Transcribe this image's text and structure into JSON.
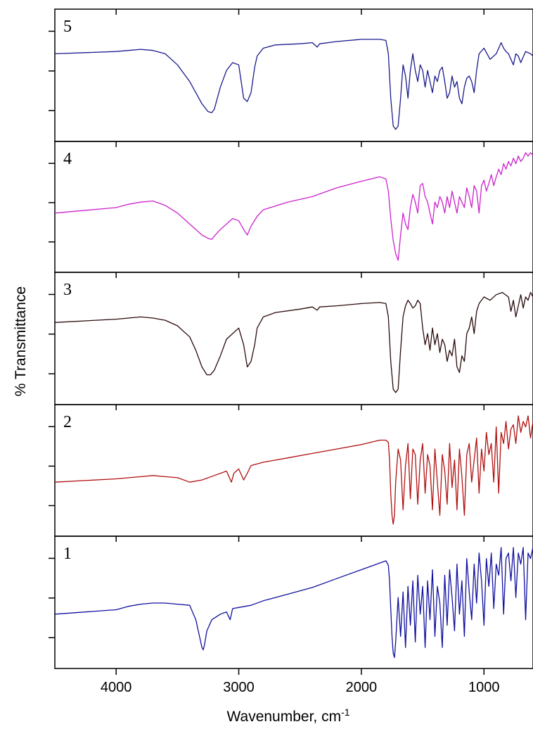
{
  "chart_data": {
    "type": "line",
    "xlabel": "Wavenumber, cm",
    "xlabel_superscript": "-1",
    "ylabel": "% Transmittance",
    "xlim": [
      4500,
      600
    ],
    "xticks": [
      4000,
      3000,
      2000,
      1000
    ],
    "x_reversed": true,
    "stacked_panels": true,
    "panels": [
      {
        "label": "5",
        "color": "#1a1a8c"
      },
      {
        "label": "4",
        "color": "#cc22cc"
      },
      {
        "label": "3",
        "color": "#2a0a0a"
      },
      {
        "label": "2",
        "color": "#b01010"
      },
      {
        "label": "1",
        "color": "#1010a0"
      }
    ],
    "series": [
      {
        "name": "5",
        "x": [
          4500,
          4000,
          3900,
          3800,
          3700,
          3600,
          3500,
          3400,
          3350,
          3300,
          3250,
          3220,
          3200,
          3150,
          3100,
          3050,
          3000,
          2980,
          2960,
          2930,
          2900,
          2870,
          2850,
          2800,
          2700,
          2500,
          2400,
          2360,
          2340,
          2200,
          2000,
          1850,
          1800,
          1780,
          1760,
          1740,
          1720,
          1700,
          1680,
          1660,
          1640,
          1620,
          1600,
          1580,
          1560,
          1540,
          1520,
          1500,
          1480,
          1460,
          1440,
          1420,
          1400,
          1380,
          1360,
          1340,
          1320,
          1300,
          1280,
          1260,
          1240,
          1220,
          1200,
          1180,
          1160,
          1140,
          1120,
          1100,
          1080,
          1060,
          1040,
          1000,
          950,
          900,
          860,
          840,
          820,
          800,
          780,
          760,
          740,
          720,
          700,
          660,
          620,
          600
        ],
        "y": [
          0.7,
          0.72,
          0.73,
          0.74,
          0.73,
          0.7,
          0.6,
          0.45,
          0.35,
          0.25,
          0.18,
          0.17,
          0.2,
          0.4,
          0.55,
          0.62,
          0.6,
          0.45,
          0.3,
          0.27,
          0.35,
          0.58,
          0.68,
          0.75,
          0.78,
          0.79,
          0.8,
          0.76,
          0.79,
          0.81,
          0.83,
          0.83,
          0.82,
          0.7,
          0.3,
          0.05,
          0.02,
          0.05,
          0.3,
          0.6,
          0.5,
          0.3,
          0.55,
          0.7,
          0.55,
          0.45,
          0.6,
          0.55,
          0.4,
          0.55,
          0.45,
          0.35,
          0.5,
          0.45,
          0.55,
          0.58,
          0.45,
          0.3,
          0.35,
          0.5,
          0.4,
          0.45,
          0.3,
          0.25,
          0.4,
          0.48,
          0.5,
          0.45,
          0.35,
          0.55,
          0.7,
          0.75,
          0.65,
          0.7,
          0.8,
          0.75,
          0.72,
          0.7,
          0.65,
          0.6,
          0.7,
          0.68,
          0.62,
          0.72,
          0.7,
          0.68
        ]
      },
      {
        "name": "4",
        "x": [
          4500,
          4000,
          3900,
          3800,
          3700,
          3600,
          3500,
          3400,
          3300,
          3250,
          3220,
          3200,
          3150,
          3100,
          3050,
          3000,
          2960,
          2930,
          2900,
          2850,
          2800,
          2600,
          2400,
          2200,
          2000,
          1850,
          1800,
          1780,
          1760,
          1740,
          1720,
          1700,
          1680,
          1660,
          1640,
          1620,
          1600,
          1580,
          1560,
          1540,
          1520,
          1500,
          1480,
          1460,
          1440,
          1420,
          1400,
          1380,
          1360,
          1340,
          1320,
          1300,
          1280,
          1260,
          1240,
          1220,
          1200,
          1180,
          1160,
          1140,
          1120,
          1100,
          1080,
          1060,
          1040,
          1020,
          1000,
          980,
          960,
          940,
          920,
          900,
          880,
          860,
          840,
          820,
          800,
          780,
          760,
          740,
          720,
          700,
          680,
          660,
          640,
          620,
          600
        ],
        "y": [
          0.45,
          0.5,
          0.53,
          0.55,
          0.56,
          0.52,
          0.45,
          0.35,
          0.25,
          0.22,
          0.21,
          0.24,
          0.3,
          0.35,
          0.4,
          0.38,
          0.3,
          0.25,
          0.33,
          0.42,
          0.48,
          0.55,
          0.6,
          0.68,
          0.74,
          0.78,
          0.76,
          0.65,
          0.4,
          0.2,
          0.08,
          0.02,
          0.25,
          0.45,
          0.35,
          0.3,
          0.5,
          0.62,
          0.55,
          0.45,
          0.7,
          0.72,
          0.6,
          0.55,
          0.45,
          0.35,
          0.55,
          0.5,
          0.6,
          0.55,
          0.45,
          0.6,
          0.5,
          0.65,
          0.55,
          0.45,
          0.6,
          0.55,
          0.5,
          0.68,
          0.6,
          0.5,
          0.7,
          0.65,
          0.45,
          0.7,
          0.75,
          0.65,
          0.72,
          0.8,
          0.7,
          0.78,
          0.85,
          0.8,
          0.9,
          0.85,
          0.92,
          0.88,
          0.95,
          0.9,
          0.97,
          0.92,
          0.95,
          1.0,
          0.97,
          1.0,
          0.98
        ]
      },
      {
        "name": "3",
        "x": [
          4500,
          4000,
          3900,
          3800,
          3700,
          3600,
          3500,
          3400,
          3350,
          3300,
          3260,
          3230,
          3200,
          3150,
          3100,
          3050,
          3000,
          2960,
          2930,
          2900,
          2870,
          2850,
          2800,
          2700,
          2500,
          2400,
          2360,
          2340,
          2200,
          2000,
          1850,
          1800,
          1780,
          1760,
          1740,
          1720,
          1700,
          1680,
          1660,
          1640,
          1620,
          1600,
          1580,
          1560,
          1540,
          1520,
          1500,
          1480,
          1460,
          1440,
          1420,
          1400,
          1380,
          1360,
          1340,
          1320,
          1300,
          1280,
          1260,
          1240,
          1220,
          1200,
          1180,
          1160,
          1140,
          1120,
          1100,
          1080,
          1060,
          1040,
          1000,
          950,
          900,
          850,
          800,
          780,
          760,
          740,
          720,
          700,
          680,
          660,
          640,
          620,
          600
        ],
        "y": [
          0.65,
          0.68,
          0.69,
          0.7,
          0.69,
          0.67,
          0.62,
          0.52,
          0.4,
          0.25,
          0.18,
          0.18,
          0.22,
          0.35,
          0.5,
          0.55,
          0.6,
          0.45,
          0.25,
          0.3,
          0.45,
          0.6,
          0.7,
          0.74,
          0.77,
          0.79,
          0.76,
          0.79,
          0.8,
          0.82,
          0.83,
          0.82,
          0.7,
          0.3,
          0.05,
          0.02,
          0.05,
          0.4,
          0.7,
          0.8,
          0.85,
          0.82,
          0.78,
          0.8,
          0.85,
          0.82,
          0.6,
          0.45,
          0.55,
          0.4,
          0.6,
          0.45,
          0.55,
          0.38,
          0.5,
          0.45,
          0.3,
          0.4,
          0.35,
          0.5,
          0.25,
          0.2,
          0.35,
          0.3,
          0.55,
          0.6,
          0.7,
          0.55,
          0.75,
          0.82,
          0.88,
          0.85,
          0.9,
          0.92,
          0.88,
          0.75,
          0.85,
          0.7,
          0.8,
          0.9,
          0.78,
          0.88,
          0.85,
          0.92,
          0.88
        ]
      },
      {
        "name": "2",
        "x": [
          4500,
          4000,
          3800,
          3700,
          3600,
          3500,
          3400,
          3300,
          3200,
          3100,
          3060,
          3040,
          3000,
          2960,
          2930,
          2900,
          2800,
          2600,
          2400,
          2200,
          2000,
          1850,
          1800,
          1780,
          1770,
          1760,
          1750,
          1740,
          1730,
          1720,
          1700,
          1680,
          1660,
          1640,
          1620,
          1600,
          1580,
          1560,
          1540,
          1520,
          1500,
          1480,
          1460,
          1440,
          1420,
          1400,
          1380,
          1360,
          1340,
          1320,
          1300,
          1280,
          1260,
          1240,
          1220,
          1200,
          1180,
          1160,
          1140,
          1120,
          1100,
          1080,
          1060,
          1040,
          1020,
          1000,
          980,
          960,
          940,
          920,
          900,
          880,
          860,
          840,
          820,
          800,
          780,
          760,
          740,
          720,
          700,
          680,
          660,
          640,
          620,
          600
        ],
        "y": [
          0.4,
          0.43,
          0.45,
          0.46,
          0.45,
          0.44,
          0.4,
          0.42,
          0.46,
          0.5,
          0.4,
          0.48,
          0.52,
          0.42,
          0.48,
          0.55,
          0.58,
          0.62,
          0.66,
          0.7,
          0.74,
          0.78,
          0.78,
          0.76,
          0.6,
          0.3,
          0.1,
          0.02,
          0.1,
          0.4,
          0.7,
          0.6,
          0.15,
          0.55,
          0.75,
          0.25,
          0.7,
          0.65,
          0.2,
          0.6,
          0.75,
          0.3,
          0.65,
          0.55,
          0.15,
          0.7,
          0.4,
          0.1,
          0.65,
          0.5,
          0.2,
          0.75,
          0.35,
          0.6,
          0.15,
          0.7,
          0.45,
          0.1,
          0.65,
          0.75,
          0.4,
          0.6,
          0.8,
          0.3,
          0.7,
          0.5,
          0.85,
          0.65,
          0.75,
          0.4,
          0.9,
          0.3,
          0.85,
          0.75,
          0.95,
          0.7,
          0.88,
          0.92,
          0.75,
          1.0,
          0.85,
          0.95,
          0.9,
          1.0,
          0.8,
          0.95
        ]
      },
      {
        "name": "1",
        "x": [
          4500,
          4000,
          3900,
          3800,
          3700,
          3600,
          3500,
          3400,
          3350,
          3320,
          3300,
          3290,
          3280,
          3260,
          3220,
          3150,
          3100,
          3070,
          3050,
          3000,
          2900,
          2800,
          2600,
          2400,
          2200,
          2000,
          1850,
          1800,
          1780,
          1770,
          1760,
          1750,
          1740,
          1730,
          1720,
          1700,
          1680,
          1660,
          1640,
          1620,
          1600,
          1580,
          1560,
          1540,
          1520,
          1500,
          1480,
          1460,
          1440,
          1420,
          1400,
          1380,
          1360,
          1340,
          1320,
          1300,
          1280,
          1260,
          1240,
          1220,
          1200,
          1180,
          1160,
          1140,
          1120,
          1100,
          1080,
          1060,
          1040,
          1020,
          1000,
          980,
          960,
          940,
          920,
          900,
          880,
          860,
          840,
          820,
          800,
          780,
          760,
          740,
          720,
          700,
          680,
          660,
          640,
          620,
          600
        ],
        "y": [
          0.4,
          0.44,
          0.47,
          0.49,
          0.5,
          0.5,
          0.49,
          0.48,
          0.35,
          0.2,
          0.1,
          0.08,
          0.12,
          0.25,
          0.35,
          0.4,
          0.42,
          0.35,
          0.45,
          0.46,
          0.48,
          0.52,
          0.58,
          0.64,
          0.72,
          0.8,
          0.86,
          0.88,
          0.84,
          0.7,
          0.45,
          0.2,
          0.05,
          0.01,
          0.15,
          0.55,
          0.2,
          0.6,
          0.1,
          0.65,
          0.3,
          0.7,
          0.15,
          0.75,
          0.4,
          0.65,
          0.1,
          0.7,
          0.35,
          0.8,
          0.2,
          0.65,
          0.5,
          0.1,
          0.75,
          0.3,
          0.8,
          0.55,
          0.25,
          0.85,
          0.4,
          0.7,
          0.2,
          0.9,
          0.6,
          0.35,
          0.85,
          0.5,
          0.95,
          0.7,
          0.3,
          0.9,
          0.65,
          0.95,
          0.45,
          0.85,
          0.75,
          1.0,
          0.4,
          0.9,
          0.95,
          0.7,
          1.0,
          0.55,
          0.95,
          0.85,
          1.0,
          0.35,
          0.95,
          0.9,
          1.0
        ]
      }
    ]
  }
}
